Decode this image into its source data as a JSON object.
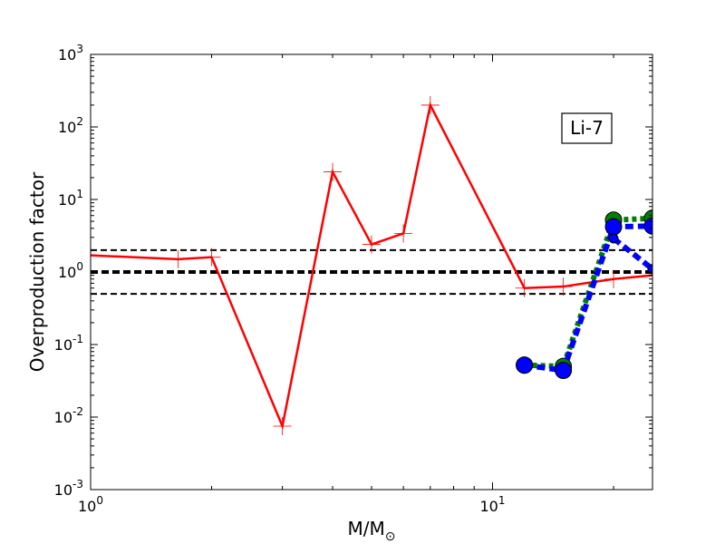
{
  "chart_data": {
    "type": "line",
    "xscale": "log",
    "yscale": "log",
    "xlim": [
      1,
      25
    ],
    "ylim": [
      0.001,
      1000
    ],
    "xlabel": "M/M",
    "xlabel_subscript": "⊙",
    "ylabel": "Overproduction factor",
    "annotation": "Li-7",
    "grid": false,
    "x_ticks": [
      {
        "value": 1,
        "base": "10",
        "exp": "0"
      },
      {
        "value": 10,
        "base": "10",
        "exp": "1"
      }
    ],
    "y_ticks": [
      {
        "value": 0.001,
        "base": "10",
        "exp": "-3"
      },
      {
        "value": 0.01,
        "base": "10",
        "exp": "-2"
      },
      {
        "value": 0.1,
        "base": "10",
        "exp": "-1"
      },
      {
        "value": 1,
        "base": "10",
        "exp": "0"
      },
      {
        "value": 10,
        "base": "10",
        "exp": "1"
      },
      {
        "value": 100,
        "base": "10",
        "exp": "2"
      },
      {
        "value": 1000,
        "base": "10",
        "exp": "3"
      }
    ],
    "reference_lines": [
      {
        "y": 2.0,
        "style": "dashed",
        "color": "#000000",
        "weight": "thin"
      },
      {
        "y": 1.0,
        "style": "dashed",
        "color": "#000000",
        "weight": "thick"
      },
      {
        "y": 0.5,
        "style": "dashed",
        "color": "#000000",
        "weight": "thin"
      }
    ],
    "series": [
      {
        "color": "#ff0000",
        "line": "solid",
        "marker": "plus",
        "x": [
          1.0,
          1.65,
          2.0,
          3.0,
          4.0,
          5.0,
          6.0,
          7.0,
          12.0,
          15.0,
          20.0,
          25.0
        ],
        "y": [
          1.7,
          1.5,
          1.6,
          0.0075,
          24.0,
          2.4,
          3.4,
          200.0,
          0.6,
          0.63,
          0.8,
          0.9
        ]
      },
      {
        "color": "#008000",
        "line": "dotted",
        "marker": "circle",
        "x": [
          12.0,
          15.0,
          20.0,
          25.0
        ],
        "y": [
          0.052,
          0.05,
          5.2,
          5.5
        ]
      },
      {
        "color": "#0000ff",
        "line": "dashed",
        "marker": "circle",
        "x": [
          12.0,
          15.0,
          20.0,
          25.0
        ],
        "y": [
          0.052,
          0.044,
          4.2,
          4.3
        ]
      },
      {
        "color": "#0000ff",
        "line": "dashed",
        "marker": "circle-small",
        "x": [
          20.0,
          25.0
        ],
        "y": [
          2.9,
          1.1
        ]
      }
    ]
  }
}
